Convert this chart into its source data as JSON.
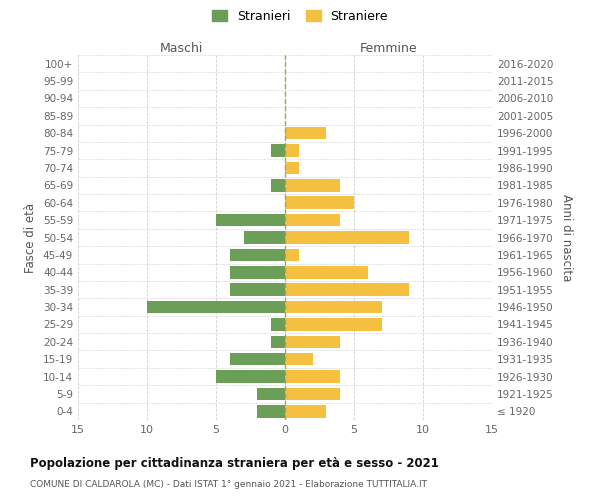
{
  "age_groups": [
    "100+",
    "95-99",
    "90-94",
    "85-89",
    "80-84",
    "75-79",
    "70-74",
    "65-69",
    "60-64",
    "55-59",
    "50-54",
    "45-49",
    "40-44",
    "35-39",
    "30-34",
    "25-29",
    "20-24",
    "15-19",
    "10-14",
    "5-9",
    "0-4"
  ],
  "birth_years": [
    "≤ 1920",
    "1921-1925",
    "1926-1930",
    "1931-1935",
    "1936-1940",
    "1941-1945",
    "1946-1950",
    "1951-1955",
    "1956-1960",
    "1961-1965",
    "1966-1970",
    "1971-1975",
    "1976-1980",
    "1981-1985",
    "1986-1990",
    "1991-1995",
    "1996-2000",
    "2001-2005",
    "2006-2010",
    "2011-2015",
    "2016-2020"
  ],
  "maschi": [
    0,
    0,
    0,
    0,
    0,
    1,
    0,
    1,
    0,
    5,
    3,
    4,
    4,
    4,
    10,
    1,
    1,
    4,
    5,
    2,
    2
  ],
  "femmine": [
    0,
    0,
    0,
    0,
    3,
    1,
    1,
    4,
    5,
    4,
    9,
    1,
    6,
    9,
    7,
    7,
    4,
    2,
    4,
    4,
    3
  ],
  "maschi_color": "#6b9e57",
  "femmine_color": "#f5c040",
  "title": "Popolazione per cittadinanza straniera per età e sesso - 2021",
  "subtitle": "COMUNE DI CALDAROLA (MC) - Dati ISTAT 1° gennaio 2021 - Elaborazione TUTTITALIA.IT",
  "xlabel_left": "Maschi",
  "xlabel_right": "Femmine",
  "ylabel_left": "Fasce di età",
  "ylabel_right": "Anni di nascita",
  "legend_stranieri": "Stranieri",
  "legend_straniere": "Straniere",
  "xlim": 15,
  "background_color": "#ffffff",
  "grid_color": "#d0d0d0"
}
